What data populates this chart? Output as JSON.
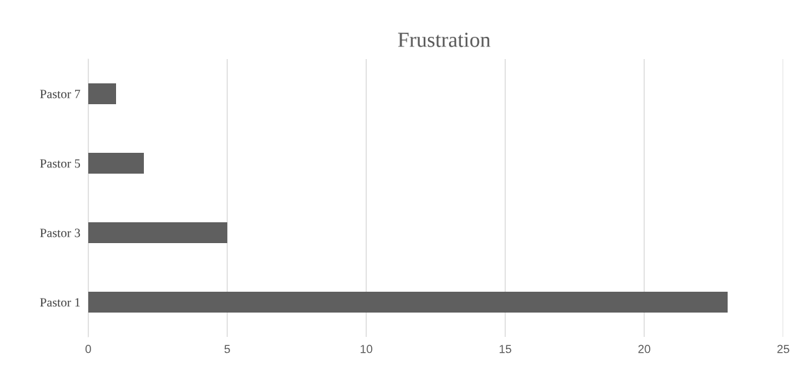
{
  "chart_data": {
    "type": "bar",
    "orientation": "horizontal",
    "title": "Frustration",
    "categories": [
      "Pastor 7",
      "Pastor 5",
      "Pastor 3",
      "Pastor 1"
    ],
    "values": [
      1,
      2,
      5,
      23
    ],
    "color": "#5f5f5f",
    "xlim": [
      0,
      25
    ],
    "xticks": [
      0,
      5,
      10,
      15,
      20,
      25
    ],
    "grid": "x",
    "legend": false
  }
}
